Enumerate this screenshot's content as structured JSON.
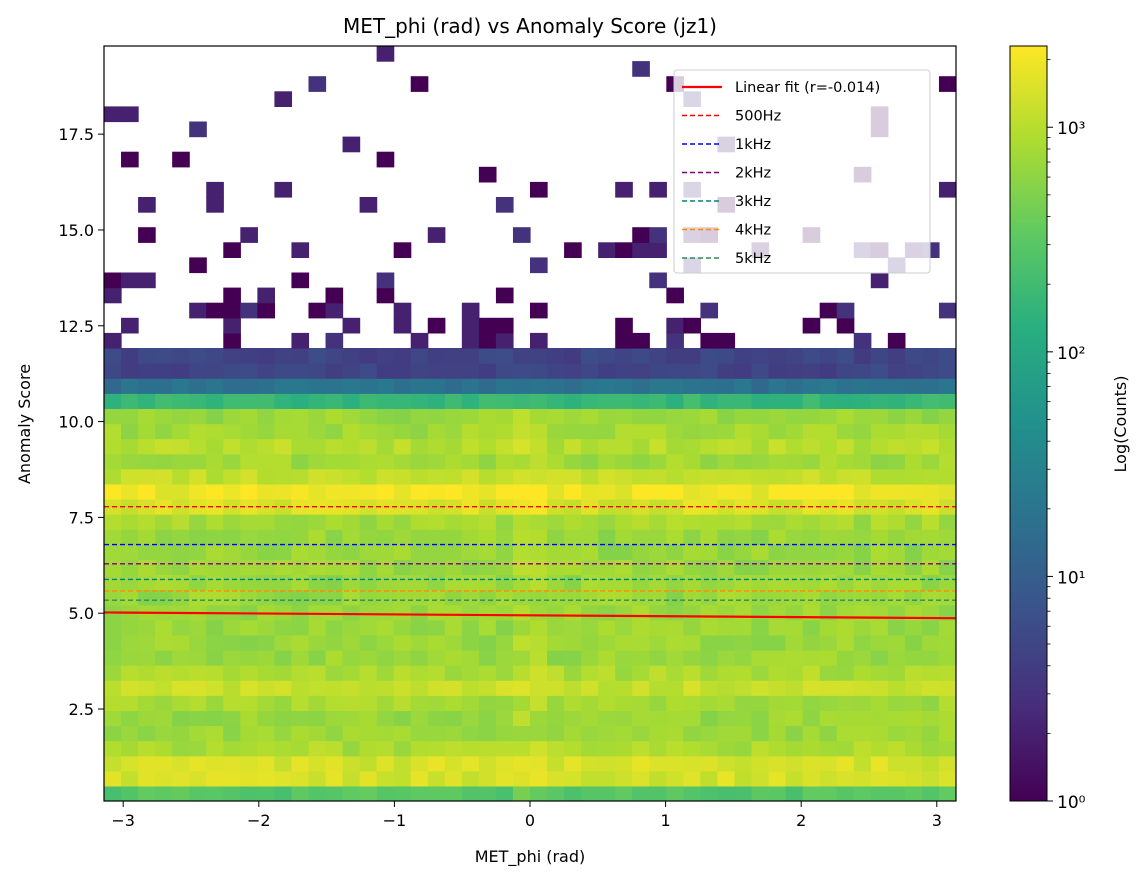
{
  "chart_data": {
    "type": "heatmap",
    "title": "MET_phi (rad) vs Anomaly Score (jz1)",
    "xlabel": "MET_phi (rad)",
    "ylabel": "Anomaly Score",
    "xlim": [
      -3.14159,
      3.14159
    ],
    "ylim": [
      0.1,
      19.8
    ],
    "x_ticks": [
      -3,
      -2,
      -1,
      0,
      1,
      2,
      3
    ],
    "x_tick_labels": [
      "−3",
      "−2",
      "−1",
      "0",
      "1",
      "2",
      "3"
    ],
    "y_ticks": [
      2.5,
      5.0,
      7.5,
      10.0,
      12.5,
      15.0,
      17.5
    ],
    "y_tick_labels": [
      "2.5",
      "5.0",
      "7.5",
      "10.0",
      "12.5",
      "15.0",
      "17.5"
    ],
    "grid": false,
    "colormap": "viridis",
    "colorbar": {
      "label": "Log(Counts)",
      "scale": "log",
      "range": [
        1,
        2300
      ],
      "major_ticks": [
        1,
        10,
        100,
        1000
      ],
      "major_tick_labels": [
        "10⁰",
        "10¹",
        "10²",
        "10³"
      ]
    },
    "histogram_bins": {
      "x_bins": 50,
      "y_bins": 50
    },
    "histogram_description": "2D histogram; very high counts (~1000-2000) for scores below about 10.7, with bright bands near 8 and 1; 10-100 counts for scores 10.7-11.8; sparse bins with 1-3 counts above 11.8 up to ~19.8",
    "lines": [
      {
        "name": "Linear fit (r=-0.014)",
        "style": "solid",
        "color": "#ff0000",
        "x": [
          -3.14159,
          3.14159
        ],
        "y": [
          5.02,
          4.87
        ]
      },
      {
        "name": "500Hz",
        "style": "dashed",
        "color": "#ff0000",
        "y": 7.78
      },
      {
        "name": "1kHz",
        "style": "dashed",
        "color": "#0000ff",
        "y": 6.79
      },
      {
        "name": "2kHz",
        "style": "dashed",
        "color": "#800080",
        "y": 6.29
      },
      {
        "name": "3kHz",
        "style": "dashed",
        "color": "#008080",
        "y": 5.88
      },
      {
        "name": "4kHz",
        "style": "dashed",
        "color": "#ff8c00",
        "y": 5.58
      },
      {
        "name": "5kHz",
        "style": "dashed",
        "color": "#2e8b57",
        "y": 5.34
      }
    ],
    "legend_position": "top-right"
  }
}
